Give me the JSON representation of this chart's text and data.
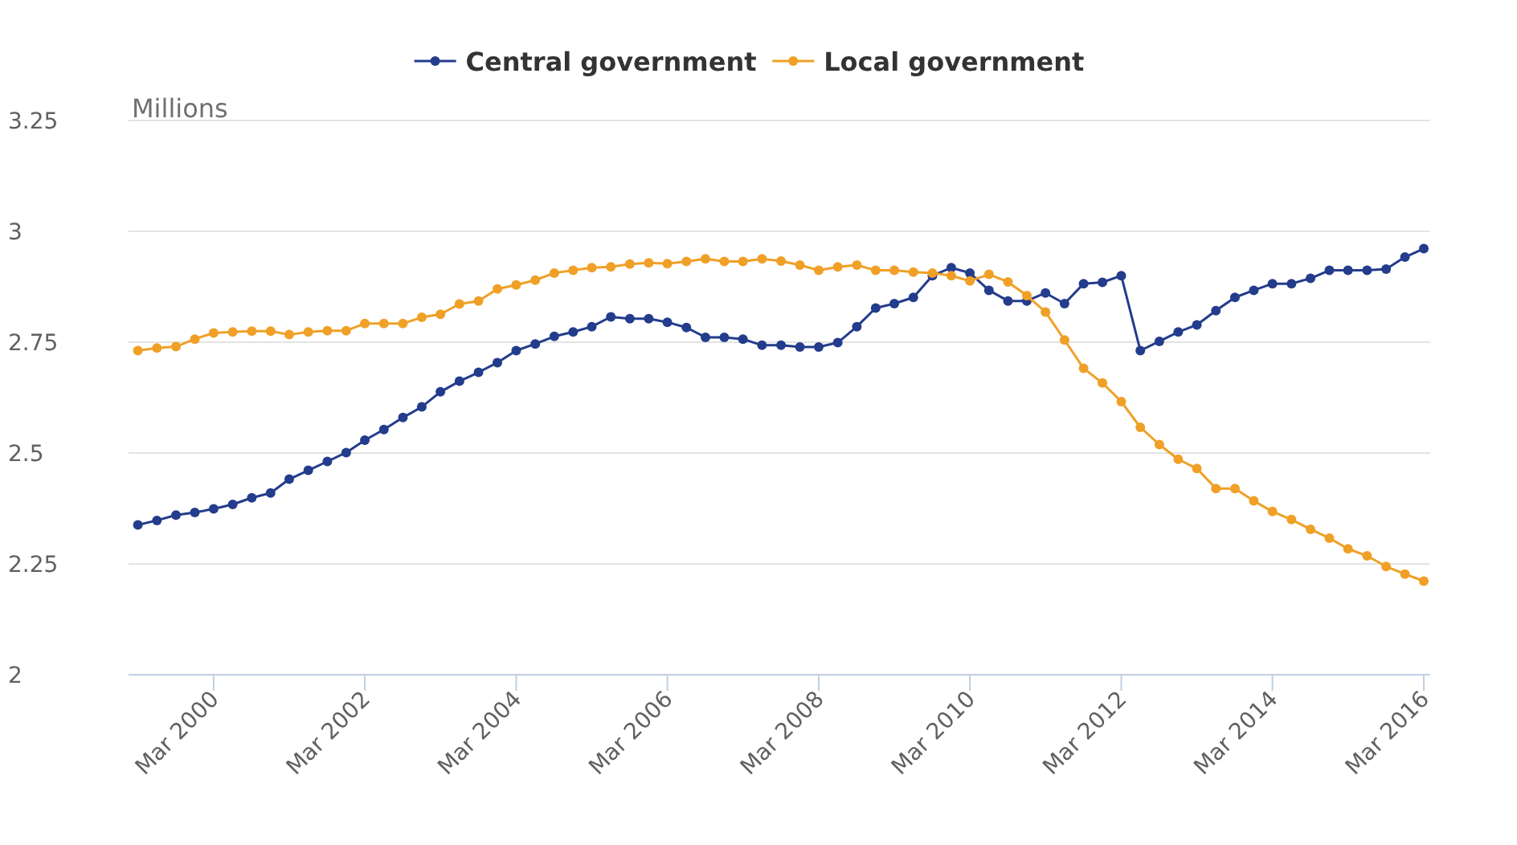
{
  "chart_data": {
    "type": "line",
    "ylabel": "Millions",
    "legend": "top",
    "grid": "y",
    "marker": "circle",
    "line_style": "solid",
    "x": [
      "1999-03",
      "1999-06",
      "1999-09",
      "1999-12",
      "2000-03",
      "2000-06",
      "2000-09",
      "2000-12",
      "2001-03",
      "2001-06",
      "2001-09",
      "2001-12",
      "2002-03",
      "2002-06",
      "2002-09",
      "2002-12",
      "2003-03",
      "2003-06",
      "2003-09",
      "2003-12",
      "2004-03",
      "2004-06",
      "2004-09",
      "2004-12",
      "2005-03",
      "2005-06",
      "2005-09",
      "2005-12",
      "2006-03",
      "2006-06",
      "2006-09",
      "2006-12",
      "2007-03",
      "2007-06",
      "2007-09",
      "2007-12",
      "2008-03",
      "2008-06",
      "2008-09",
      "2008-12",
      "2009-03",
      "2009-06",
      "2009-09",
      "2009-12",
      "2010-03",
      "2010-06",
      "2010-09",
      "2010-12",
      "2011-03",
      "2011-06",
      "2011-09",
      "2011-12",
      "2012-03",
      "2012-06",
      "2012-09",
      "2012-12",
      "2013-03",
      "2013-06",
      "2013-09",
      "2013-12",
      "2014-03",
      "2014-06",
      "2014-09",
      "2014-12",
      "2015-03",
      "2015-06",
      "2015-09",
      "2015-12",
      "2016-03"
    ],
    "series": [
      {
        "name": "Central government",
        "color": "#233c8c",
        "values": [
          2.338,
          2.348,
          2.36,
          2.366,
          2.374,
          2.384,
          2.399,
          2.41,
          2.441,
          2.461,
          2.481,
          2.501,
          2.529,
          2.553,
          2.58,
          2.604,
          2.638,
          2.662,
          2.682,
          2.704,
          2.731,
          2.746,
          2.763,
          2.773,
          2.785,
          2.807,
          2.803,
          2.803,
          2.795,
          2.783,
          2.761,
          2.761,
          2.757,
          2.743,
          2.743,
          2.739,
          2.739,
          2.749,
          2.785,
          2.827,
          2.837,
          2.851,
          2.9,
          2.918,
          2.906,
          2.867,
          2.843,
          2.843,
          2.861,
          2.837,
          2.882,
          2.885,
          2.9,
          2.731,
          2.752,
          2.773,
          2.789,
          2.821,
          2.851,
          2.867,
          2.882,
          2.882,
          2.894,
          2.912,
          2.912,
          2.912,
          2.915,
          2.942,
          2.961
        ]
      },
      {
        "name": "Local government",
        "color": "#f0a027",
        "values": [
          2.731,
          2.737,
          2.74,
          2.757,
          2.771,
          2.773,
          2.775,
          2.775,
          2.767,
          2.773,
          2.776,
          2.776,
          2.792,
          2.792,
          2.792,
          2.806,
          2.813,
          2.836,
          2.843,
          2.87,
          2.879,
          2.89,
          2.906,
          2.912,
          2.918,
          2.92,
          2.926,
          2.929,
          2.927,
          2.932,
          2.938,
          2.932,
          2.932,
          2.938,
          2.933,
          2.924,
          2.912,
          2.92,
          2.924,
          2.912,
          2.912,
          2.908,
          2.906,
          2.9,
          2.888,
          2.903,
          2.886,
          2.855,
          2.818,
          2.755,
          2.691,
          2.658,
          2.616,
          2.558,
          2.519,
          2.486,
          2.465,
          2.42,
          2.42,
          2.392,
          2.368,
          2.35,
          2.328,
          2.308,
          2.284,
          2.268,
          2.244,
          2.227,
          2.211
        ]
      }
    ],
    "xlim": [
      "1999-01-15",
      "2016-04"
    ],
    "xticks": [
      {
        "value": "2000-03",
        "label": "Mar 2000"
      },
      {
        "value": "2002-03",
        "label": "Mar 2002"
      },
      {
        "value": "2004-03",
        "label": "Mar 2004"
      },
      {
        "value": "2006-03",
        "label": "Mar 2006"
      },
      {
        "value": "2008-03",
        "label": "Mar 2008"
      },
      {
        "value": "2010-03",
        "label": "Mar 2010"
      },
      {
        "value": "2012-03",
        "label": "Mar 2012"
      },
      {
        "value": "2014-03",
        "label": "Mar 2014"
      },
      {
        "value": "2016-03",
        "label": "Mar 2016"
      }
    ],
    "ylim": [
      2,
      3.25
    ],
    "yticks": [
      2,
      2.25,
      2.5,
      2.75,
      3,
      3.25
    ]
  }
}
